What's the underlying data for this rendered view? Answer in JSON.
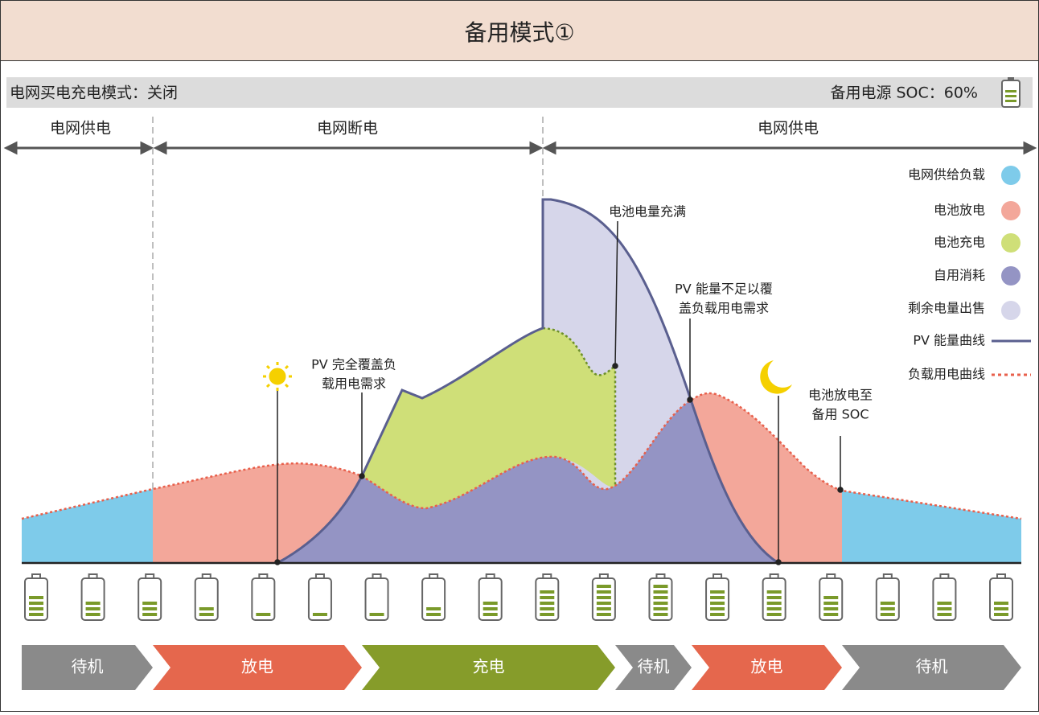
{
  "title": "备用模式①",
  "status": {
    "left": "电网买电充电模式：关闭",
    "right": "备用电源 SOC：60%"
  },
  "periods": [
    "电网供电",
    "电网断电",
    "电网供电"
  ],
  "legend": [
    "电网供给负载",
    "电池放电",
    "电池充电",
    "自用消耗",
    "剩余电量出售",
    "PV 能量曲线",
    "负载用电曲线"
  ],
  "annotations": {
    "pv_cover": [
      "PV 完全覆盖负",
      "载用电需求"
    ],
    "battery_full": [
      "电池电量充满"
    ],
    "pv_short": [
      "PV 能量不足以覆",
      "盖负载用电需求"
    ],
    "discharge_soc": [
      "电池放电至",
      "备用 SOC"
    ]
  },
  "battery_levels": [
    4,
    3,
    3,
    2,
    1,
    1,
    1,
    2,
    3,
    5,
    6,
    6,
    5,
    5,
    4,
    3,
    3,
    3
  ],
  "stages": [
    "待机",
    "放电",
    "充电",
    "待机",
    "放电",
    "待机"
  ]
}
